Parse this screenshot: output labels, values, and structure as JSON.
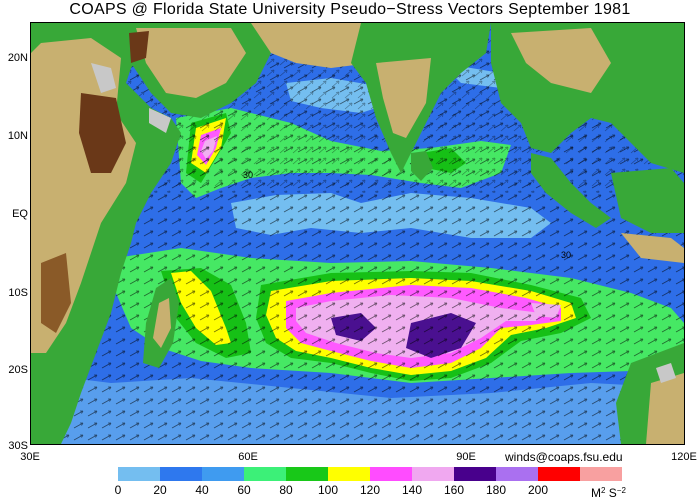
{
  "title": "COAPS @ Florida State University Pseudo−Stress Vectors  September 1981",
  "map": {
    "latitude_labels": [
      "20N",
      "10N",
      "EQ",
      "10S",
      "20S",
      "30S"
    ],
    "longitude_labels": [
      "30E",
      "60E",
      "90E",
      "120E"
    ],
    "contour_labels": [
      "30",
      "30"
    ]
  },
  "credit": "winds@coaps.fsu.edu",
  "legend": {
    "colors": [
      "#74bef0",
      "#2e78ee",
      "#3f9bf0",
      "#3cf078",
      "#18c818",
      "#ffff00",
      "#ff4cff",
      "#f0a8f0",
      "#48008c",
      "#aa70f0",
      "#ff0000",
      "#f8a0a0"
    ],
    "ticks": [
      "0",
      "20",
      "40",
      "60",
      "80",
      "100",
      "120",
      "140",
      "160",
      "180",
      "200"
    ],
    "units_base": "M",
    "units_exp1": "2",
    "units_mid": " S",
    "units_exp2": "−2"
  },
  "palette": {
    "ocean_low": "#74bef0",
    "ocean": "#2e6ee8",
    "stress_40": "#46e864",
    "stress_60": "#16c016",
    "stress_80": "#ffff00",
    "stress_100": "#ff5aff",
    "stress_120": "#f0b0f0",
    "stress_140": "#4a1090",
    "land_low": "#38a838",
    "land_mid": "#c8b070",
    "land_high": "#6a3818",
    "ice_shelf": "#c8c8c8"
  }
}
